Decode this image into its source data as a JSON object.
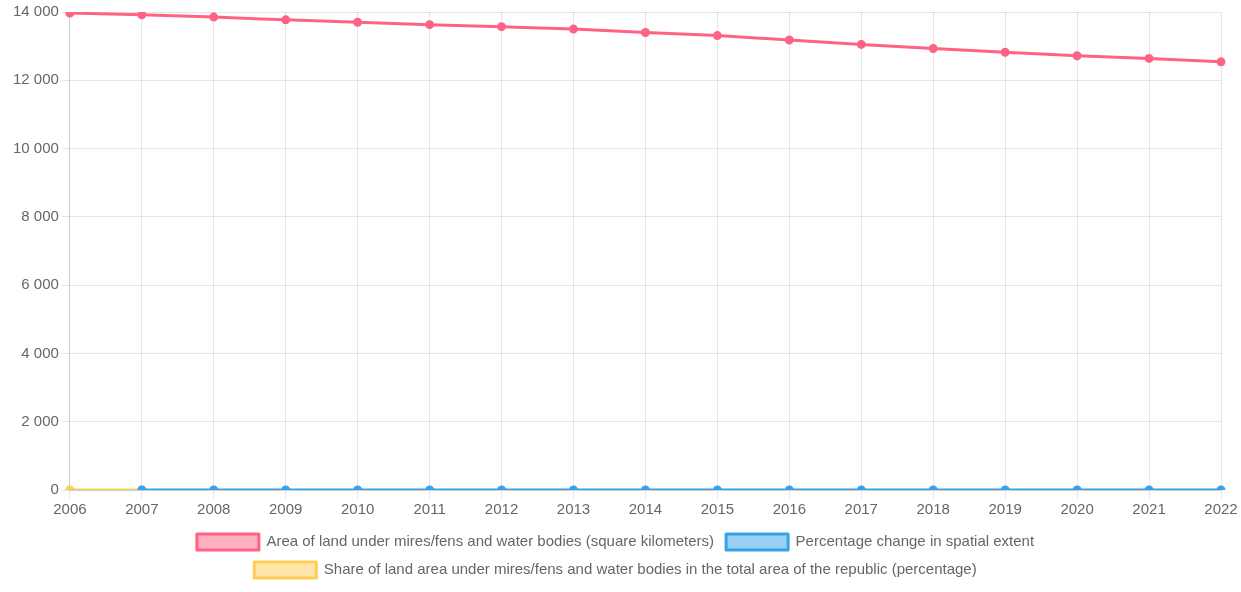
{
  "chart_data": {
    "type": "line",
    "categories": [
      "2006",
      "2007",
      "2008",
      "2009",
      "2010",
      "2011",
      "2012",
      "2013",
      "2014",
      "2015",
      "2016",
      "2017",
      "2018",
      "2019",
      "2020",
      "2021",
      "2022"
    ],
    "series": [
      {
        "name": "Area of land under mires/fens and water bodies (square kilometers)",
        "color": "#ff6384",
        "values": [
          13970,
          13920,
          13850,
          13770,
          13700,
          13630,
          13570,
          13500,
          13400,
          13310,
          13180,
          13050,
          12930,
          12820,
          12720,
          12640,
          12540
        ]
      },
      {
        "name": "Percentage change in spatial extent",
        "color": "#36a2eb",
        "values": [
          null,
          0,
          0,
          0,
          0,
          0,
          0,
          0,
          0,
          0,
          0,
          0,
          0,
          0,
          0,
          0,
          0
        ]
      },
      {
        "name": "Share of land area under mires/fens and water bodies in the total area of the republic (percentage)",
        "color": "#ffcd56",
        "values": [
          0,
          0,
          null,
          null,
          null,
          null,
          null,
          null,
          null,
          null,
          null,
          null,
          null,
          null,
          null,
          null,
          null
        ]
      }
    ],
    "ylim": [
      0,
      14000
    ],
    "yticks": [
      {
        "value": 0,
        "label": "0"
      },
      {
        "value": 2000,
        "label": "2 000"
      },
      {
        "value": 4000,
        "label": "4 000"
      },
      {
        "value": 6000,
        "label": "6 000"
      },
      {
        "value": 8000,
        "label": "8 000"
      },
      {
        "value": 10000,
        "label": "10 000"
      },
      {
        "value": 12000,
        "label": "12 000"
      },
      {
        "value": 14000,
        "label": "14 000"
      }
    ],
    "grid": true,
    "legend": "bottom",
    "marker": "circle",
    "line_style": "solid"
  }
}
